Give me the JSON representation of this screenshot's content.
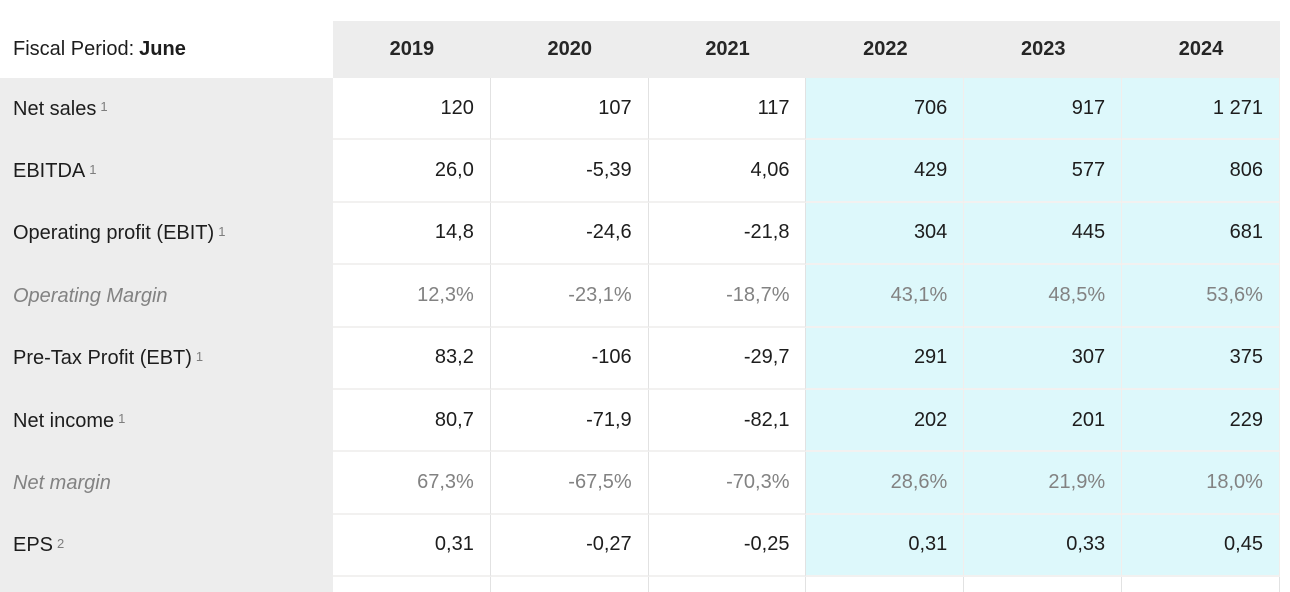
{
  "table": {
    "header": {
      "fiscal_label": "Fiscal Period:",
      "fiscal_value": "June",
      "years": [
        "2019",
        "2020",
        "2021",
        "2022",
        "2023",
        "2024"
      ]
    },
    "estimate_start_col": 3,
    "rows": [
      {
        "label": "Net sales",
        "sup": "1",
        "style": "normal",
        "values": [
          "120",
          "107",
          "117",
          "706",
          "917",
          "1 271"
        ]
      },
      {
        "label": "EBITDA",
        "sup": "1",
        "style": "normal",
        "values": [
          "26,0",
          "-5,39",
          "4,06",
          "429",
          "577",
          "806"
        ]
      },
      {
        "label": "Operating profit (EBIT)",
        "sup": "1",
        "style": "normal",
        "values": [
          "14,8",
          "-24,6",
          "-21,8",
          "304",
          "445",
          "681"
        ]
      },
      {
        "label": "Operating Margin",
        "sup": "",
        "style": "italic",
        "values": [
          "12,3%",
          "-23,1%",
          "-18,7%",
          "43,1%",
          "48,5%",
          "53,6%"
        ]
      },
      {
        "label": "Pre-Tax Profit (EBT)",
        "sup": "1",
        "style": "normal",
        "values": [
          "83,2",
          "-106",
          "-29,7",
          "291",
          "307",
          "375"
        ]
      },
      {
        "label": "Net income",
        "sup": "1",
        "style": "normal",
        "values": [
          "80,7",
          "-71,9",
          "-82,1",
          "202",
          "201",
          "229"
        ]
      },
      {
        "label": "Net margin",
        "sup": "",
        "style": "italic",
        "values": [
          "67,3%",
          "-67,5%",
          "-70,3%",
          "28,6%",
          "21,9%",
          "18,0%"
        ]
      },
      {
        "label": "EPS",
        "sup": "2",
        "style": "normal",
        "values": [
          "0,31",
          "-0,27",
          "-0,25",
          "0,31",
          "0,33",
          "0,45"
        ]
      }
    ],
    "colors": {
      "estimate_bg": "#ddf8fb",
      "label_column_bg": "#ededed",
      "header_bg": "#ededed",
      "text": "#1d1d1d",
      "muted_text": "#828282"
    }
  }
}
